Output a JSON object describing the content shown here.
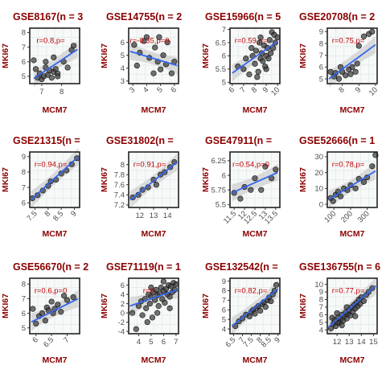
{
  "chart_data": [
    {
      "type": "scatter",
      "title": "GSE8167(n = 3",
      "xlabel": "MCM7",
      "ylabel": "MKI67",
      "xlim": [
        6.4,
        8.9
      ],
      "ylim": [
        4.5,
        8.3
      ],
      "xticks": [
        7,
        8
      ],
      "yticks": [
        5,
        6,
        7,
        8
      ],
      "xrot": false,
      "annotation": "r=0.8,p=",
      "fit": {
        "x": [
          6.6,
          8.8
        ],
        "y": [
          4.85,
          6.85
        ]
      },
      "points": [
        [
          6.7,
          5.5
        ],
        [
          6.8,
          4.9
        ],
        [
          6.9,
          5.2
        ],
        [
          7.0,
          4.8
        ],
        [
          7.1,
          5.0
        ],
        [
          7.2,
          5.6
        ],
        [
          7.3,
          5.1
        ],
        [
          7.4,
          5.4
        ],
        [
          7.5,
          4.9
        ],
        [
          7.6,
          5.3
        ],
        [
          7.7,
          5.5
        ],
        [
          7.8,
          5.2
        ],
        [
          7.6,
          6.3
        ],
        [
          7.2,
          6.0
        ],
        [
          8.1,
          6.0
        ],
        [
          8.3,
          5.6
        ],
        [
          8.5,
          6.8
        ],
        [
          8.6,
          7.1
        ],
        [
          6.6,
          6.1
        ],
        [
          7.8,
          5.0
        ]
      ]
    },
    {
      "type": "scatter",
      "title": "GSE14755(n = 2",
      "xlabel": "MCM7",
      "ylabel": "MKI67",
      "xlim": [
        2.7,
        6.3
      ],
      "ylim": [
        2.8,
        7.1
      ],
      "xticks": [
        3,
        4,
        5,
        6
      ],
      "yticks": [
        3,
        4,
        5,
        6
      ],
      "xrot": true,
      "annotation": "r=-0.35,p=0",
      "fit": {
        "x": [
          2.8,
          6.2
        ],
        "y": [
          5.3,
          4.2
        ]
      },
      "points": [
        [
          3.1,
          5.8
        ],
        [
          3.3,
          4.2
        ],
        [
          3.8,
          6.1
        ],
        [
          4.0,
          6.4
        ],
        [
          4.2,
          4.8
        ],
        [
          4.5,
          3.6
        ],
        [
          4.6,
          5.6
        ],
        [
          4.8,
          4.5
        ],
        [
          5.0,
          3.9
        ],
        [
          5.2,
          5.0
        ],
        [
          5.4,
          4.3
        ],
        [
          5.5,
          6.0
        ],
        [
          5.8,
          3.6
        ],
        [
          6.0,
          4.5
        ],
        [
          4.9,
          6.4
        ],
        [
          3.5,
          5.2
        ]
      ]
    },
    {
      "type": "scatter",
      "title": "GSE15966(n = 5",
      "xlabel": "MCM7",
      "ylabel": "MKI67",
      "xlim": [
        5.8,
        10.2
      ],
      "ylim": [
        4.95,
        7.05
      ],
      "xticks": [
        6,
        7,
        8,
        9,
        10
      ],
      "yticks": [
        5.0,
        5.5,
        6.0,
        6.5,
        7.0
      ],
      "xrot": true,
      "annotation": "r=0.59,p=",
      "fit": {
        "x": [
          6.0,
          10.0
        ],
        "y": [
          5.35,
          6.55
        ]
      },
      "points": [
        [
          6.5,
          5.6
        ],
        [
          7.0,
          5.5
        ],
        [
          7.2,
          5.9
        ],
        [
          7.5,
          5.3
        ],
        [
          7.8,
          6.0
        ],
        [
          8.0,
          5.7
        ],
        [
          8.1,
          6.2
        ],
        [
          8.3,
          5.4
        ],
        [
          8.4,
          6.5
        ],
        [
          8.5,
          5.9
        ],
        [
          8.6,
          6.1
        ],
        [
          8.7,
          5.8
        ],
        [
          8.8,
          6.4
        ],
        [
          8.9,
          5.6
        ],
        [
          9.0,
          6.0
        ],
        [
          9.1,
          6.3
        ],
        [
          9.2,
          5.9
        ],
        [
          9.3,
          6.6
        ],
        [
          9.4,
          6.1
        ],
        [
          9.5,
          6.9
        ],
        [
          9.6,
          6.3
        ],
        [
          9.7,
          6.8
        ],
        [
          9.8,
          6.5
        ],
        [
          10.0,
          6.7
        ],
        [
          8.2,
          5.2
        ],
        [
          7.7,
          6.3
        ],
        [
          9.0,
          5.5
        ],
        [
          8.5,
          6.7
        ]
      ]
    },
    {
      "type": "scatter",
      "title": "GSE20708(n = 2",
      "xlabel": "MCM7",
      "ylabel": "MKI67",
      "xlim": [
        7.1,
        10.1
      ],
      "ylim": [
        4.6,
        9.3
      ],
      "xticks": [
        8,
        9,
        10
      ],
      "yticks": [
        5,
        6,
        7,
        8,
        9
      ],
      "xrot": true,
      "annotation": "r=0.75,p=",
      "fit": {
        "x": [
          7.2,
          10.0
        ],
        "y": [
          5.0,
          7.9
        ]
      },
      "points": [
        [
          7.3,
          5.6
        ],
        [
          7.5,
          5.2
        ],
        [
          7.6,
          5.5
        ],
        [
          7.8,
          5.0
        ],
        [
          8.0,
          5.6
        ],
        [
          8.2,
          5.3
        ],
        [
          8.4,
          5.8
        ],
        [
          8.5,
          5.4
        ],
        [
          8.6,
          6.0
        ],
        [
          8.8,
          5.6
        ],
        [
          9.0,
          7.8
        ],
        [
          9.3,
          8.6
        ],
        [
          9.6,
          8.8
        ],
        [
          9.8,
          9.0
        ],
        [
          7.9,
          6.0
        ],
        [
          8.9,
          6.3
        ]
      ]
    },
    {
      "type": "scatter",
      "title": "GSE21315(n =",
      "xlabel": "MCM7",
      "ylabel": "MKI67",
      "xlim": [
        7.3,
        9.2
      ],
      "ylim": [
        5.7,
        9.3
      ],
      "xticks": [
        7.5,
        8.0,
        8.5,
        9.0
      ],
      "yticks": [
        6,
        7,
        8,
        9
      ],
      "xrot": true,
      "annotation": "r=0.94,p=",
      "fit": {
        "x": [
          7.35,
          9.15
        ],
        "y": [
          6.2,
          9.0
        ]
      },
      "points": [
        [
          7.4,
          6.3
        ],
        [
          7.6,
          6.5
        ],
        [
          7.8,
          6.8
        ],
        [
          8.0,
          7.1
        ],
        [
          8.1,
          7.4
        ],
        [
          8.3,
          7.5
        ],
        [
          8.5,
          7.9
        ],
        [
          8.7,
          8.1
        ],
        [
          8.9,
          8.5
        ],
        [
          9.1,
          8.9
        ]
      ]
    },
    {
      "type": "scatter",
      "title": "GSE31802(n =",
      "xlabel": "MCM7",
      "ylabel": "MKI67",
      "xlim": [
        11.2,
        14.8
      ],
      "ylim": [
        7.15,
        8.25
      ],
      "xticks": [
        12,
        13,
        14
      ],
      "yticks": [
        7.2,
        7.4,
        7.6,
        7.8,
        8.0
      ],
      "xrot": false,
      "annotation": "r=0.91,p=",
      "fit": {
        "x": [
          11.3,
          14.7
        ],
        "y": [
          7.3,
          8.05
        ]
      },
      "points": [
        [
          11.5,
          7.35
        ],
        [
          11.9,
          7.4
        ],
        [
          12.2,
          7.5
        ],
        [
          12.6,
          7.55
        ],
        [
          13.0,
          7.7
        ],
        [
          13.2,
          7.6
        ],
        [
          13.5,
          7.8
        ],
        [
          13.8,
          7.85
        ],
        [
          14.2,
          7.95
        ],
        [
          14.5,
          8.05
        ]
      ]
    },
    {
      "type": "scatter",
      "title": "GSE47911(n =",
      "xlabel": "MCM7",
      "ylabel": "MKI67",
      "xlim": [
        11.3,
        13.7
      ],
      "ylim": [
        5.45,
        6.4
      ],
      "xticks": [
        11.5,
        12.0,
        12.5,
        13.0,
        13.5
      ],
      "yticks": [
        5.5,
        5.75,
        6.0,
        6.25
      ],
      "xrot": true,
      "annotation": "r=0.54,p=0",
      "fit": {
        "x": [
          11.4,
          13.6
        ],
        "y": [
          5.7,
          6.05
        ]
      },
      "points": [
        [
          11.5,
          5.7
        ],
        [
          11.8,
          5.6
        ],
        [
          12.0,
          5.8
        ],
        [
          12.3,
          5.75
        ],
        [
          12.5,
          5.95
        ],
        [
          12.8,
          5.75
        ],
        [
          13.0,
          6.15
        ],
        [
          13.3,
          5.95
        ],
        [
          13.5,
          6.1
        ]
      ]
    },
    {
      "type": "scatter",
      "title": "GSE52666(n = 1",
      "xlabel": "MCM7",
      "ylabel": "MKI67",
      "xlim": [
        60,
        360
      ],
      "ylim": [
        -2,
        33
      ],
      "xticks": [
        100,
        200,
        300
      ],
      "yticks": [
        0,
        10,
        20,
        30
      ],
      "xrot": true,
      "annotation": "r=0.78,p=",
      "fit": {
        "x": [
          70,
          350
        ],
        "y": [
          3,
          21
        ]
      },
      "points": [
        [
          80,
          4
        ],
        [
          95,
          2
        ],
        [
          110,
          6
        ],
        [
          125,
          8
        ],
        [
          140,
          5
        ],
        [
          160,
          10
        ],
        [
          180,
          9
        ],
        [
          200,
          12
        ],
        [
          230,
          10
        ],
        [
          250,
          16
        ],
        [
          280,
          14
        ],
        [
          300,
          17
        ],
        [
          330,
          24
        ],
        [
          350,
          31
        ]
      ]
    },
    {
      "type": "scatter",
      "title": "GSE56670(n = 2",
      "xlabel": "MCM7",
      "ylabel": "MKI67",
      "xlim": [
        5.8,
        7.4
      ],
      "ylim": [
        4.6,
        8.4
      ],
      "xticks": [
        6.0,
        6.5,
        7.0
      ],
      "yticks": [
        5,
        6,
        7,
        8
      ],
      "xrot": true,
      "annotation": "r=0.6,p=0",
      "fit": {
        "x": [
          5.85,
          7.35
        ],
        "y": [
          5.4,
          7.0
        ]
      },
      "points": [
        [
          5.9,
          6.3
        ],
        [
          6.0,
          5.3
        ],
        [
          6.1,
          5.8
        ],
        [
          6.2,
          6.0
        ],
        [
          6.3,
          5.5
        ],
        [
          6.35,
          6.4
        ],
        [
          6.4,
          6.2
        ],
        [
          6.5,
          6.8
        ],
        [
          6.55,
          6.0
        ],
        [
          6.6,
          6.3
        ],
        [
          6.7,
          6.6
        ],
        [
          6.8,
          6.1
        ],
        [
          6.9,
          7.2
        ],
        [
          7.0,
          6.9
        ],
        [
          7.2,
          7.1
        ]
      ]
    },
    {
      "type": "scatter",
      "title": "GSE71119(n = 1",
      "xlabel": "MCM7",
      "ylabel": "MKI67",
      "xlim": [
        3.2,
        7.2
      ],
      "ylim": [
        -4.5,
        7.5
      ],
      "xticks": [
        4,
        5,
        6,
        7
      ],
      "yticks": [
        -4,
        -2,
        0,
        2,
        4,
        6
      ],
      "xrot": false,
      "annotation": "r=0.",
      "fit": {
        "x": [
          3.3,
          7.1
        ],
        "y": [
          1.5,
          5.0
        ]
      },
      "points": [
        [
          3.5,
          0.0
        ],
        [
          3.8,
          -3.5
        ],
        [
          4.0,
          1.5
        ],
        [
          4.2,
          2.5
        ],
        [
          4.3,
          -0.5
        ],
        [
          4.5,
          3.0
        ],
        [
          4.6,
          1.0
        ],
        [
          4.8,
          4.0
        ],
        [
          4.9,
          2.0
        ],
        [
          5.0,
          3.5
        ],
        [
          5.1,
          -1.0
        ],
        [
          5.2,
          4.5
        ],
        [
          5.3,
          2.8
        ],
        [
          5.4,
          5.0
        ],
        [
          5.5,
          3.8
        ],
        [
          5.6,
          1.5
        ],
        [
          5.7,
          4.2
        ],
        [
          5.8,
          5.5
        ],
        [
          5.9,
          3.0
        ],
        [
          6.0,
          4.8
        ],
        [
          6.1,
          2.2
        ],
        [
          6.2,
          5.2
        ],
        [
          6.3,
          4.0
        ],
        [
          6.4,
          6.0
        ],
        [
          6.5,
          3.5
        ],
        [
          6.6,
          5.8
        ],
        [
          6.7,
          4.5
        ],
        [
          6.8,
          6.5
        ],
        [
          6.9,
          5.0
        ],
        [
          7.0,
          6.2
        ],
        [
          5.5,
          0.0
        ],
        [
          4.7,
          -2.0
        ],
        [
          6.0,
          6.8
        ],
        [
          5.0,
          5.5
        ],
        [
          6.5,
          1.0
        ]
      ]
    },
    {
      "type": "scatter",
      "title": "GSE132542(n =",
      "xlabel": "MCM7",
      "ylabel": "MKI67",
      "xlim": [
        6.3,
        9.1
      ],
      "ylim": [
        3.5,
        9.3
      ],
      "xticks": [
        6.5,
        7.0,
        7.5,
        8.0,
        8.5,
        9.0
      ],
      "yticks": [
        4,
        5,
        6,
        7,
        8,
        9
      ],
      "xrot": true,
      "annotation": "r=0.82,p=",
      "fit": {
        "x": [
          6.4,
          9.0
        ],
        "y": [
          4.3,
          8.2
        ]
      },
      "points": [
        [
          6.6,
          4.3
        ],
        [
          6.8,
          4.8
        ],
        [
          7.0,
          5.1
        ],
        [
          7.2,
          5.5
        ],
        [
          7.4,
          5.3
        ],
        [
          7.5,
          5.8
        ],
        [
          7.6,
          6.0
        ],
        [
          7.7,
          5.6
        ],
        [
          7.8,
          6.2
        ],
        [
          7.9,
          6.4
        ],
        [
          8.0,
          5.9
        ],
        [
          8.1,
          6.6
        ],
        [
          8.2,
          6.8
        ],
        [
          8.3,
          6.3
        ],
        [
          8.4,
          7.0
        ],
        [
          8.5,
          7.3
        ],
        [
          8.6,
          6.9
        ],
        [
          8.7,
          7.6
        ],
        [
          8.8,
          8.0
        ],
        [
          8.9,
          8.6
        ]
      ]
    },
    {
      "type": "scatter",
      "title": "GSE136755(n = 6",
      "xlabel": "MCM7",
      "ylabel": "MKI67",
      "xlim": [
        11.2,
        15.3
      ],
      "ylim": [
        3.5,
        10.8
      ],
      "xticks": [
        12,
        13,
        14,
        15
      ],
      "yticks": [
        4,
        5,
        6,
        7,
        8,
        9,
        10
      ],
      "xrot": false,
      "annotation": "r=0.77,p=",
      "fit": {
        "x": [
          11.3,
          15.2
        ],
        "y": [
          4.4,
          9.8
        ]
      },
      "points": [
        [
          11.5,
          4.2
        ],
        [
          11.7,
          4.8
        ],
        [
          11.8,
          5.3
        ],
        [
          11.9,
          4.5
        ],
        [
          12.0,
          5.0
        ],
        [
          12.1,
          5.6
        ],
        [
          12.2,
          4.9
        ],
        [
          12.3,
          5.4
        ],
        [
          12.4,
          6.0
        ],
        [
          12.5,
          5.2
        ],
        [
          12.6,
          5.8
        ],
        [
          12.7,
          6.3
        ],
        [
          12.8,
          5.5
        ],
        [
          12.9,
          6.1
        ],
        [
          13.0,
          6.6
        ],
        [
          13.1,
          5.9
        ],
        [
          13.2,
          7.0
        ],
        [
          13.3,
          6.4
        ],
        [
          13.4,
          7.3
        ],
        [
          13.5,
          6.8
        ],
        [
          13.6,
          7.6
        ],
        [
          13.7,
          7.1
        ],
        [
          13.8,
          8.0
        ],
        [
          13.9,
          7.4
        ],
        [
          14.0,
          8.3
        ],
        [
          14.2,
          7.8
        ],
        [
          14.4,
          8.6
        ],
        [
          14.6,
          9.0
        ],
        [
          14.9,
          9.5
        ],
        [
          12.4,
          4.6
        ],
        [
          12.0,
          6.2
        ],
        [
          13.5,
          5.8
        ],
        [
          11.6,
          5.6
        ],
        [
          12.8,
          7.0
        ]
      ]
    }
  ]
}
